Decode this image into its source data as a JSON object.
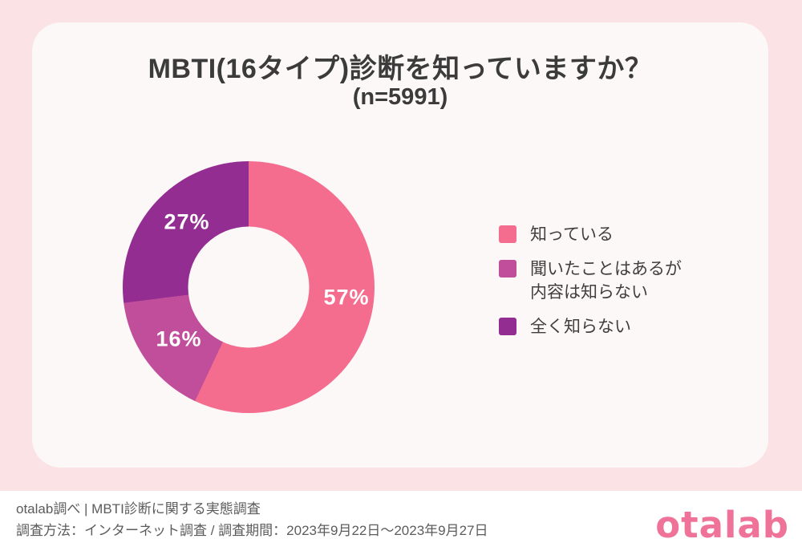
{
  "header": {
    "title": "MBTI(16タイプ)診断を知っていますか？",
    "subtitle": "(n=5991)"
  },
  "chart_data": {
    "type": "pie",
    "subtype": "donut",
    "title": "MBTI(16タイプ)診断を知っていますか？",
    "sample_label": "(n=5991)",
    "sample_size": 5991,
    "unit": "%",
    "categories": [
      "知っている",
      "聞いたことはあるが内容は知らない",
      "全く知らない"
    ],
    "values": [
      57,
      16,
      27
    ],
    "labels": [
      "57%",
      "16%",
      "27%"
    ],
    "colors": [
      "#F46D8F",
      "#C14E9B",
      "#932D91"
    ],
    "start_angle_deg": 0,
    "direction": "clockwise",
    "inner_radius_ratio": 0.48,
    "data_label_color": "#FFFFFF",
    "legend_position": "right"
  },
  "legend": {
    "items": [
      {
        "lines": [
          "知っている"
        ],
        "color": "#F46D8F"
      },
      {
        "lines": [
          "聞いたことはあるが",
          "内容は知らない"
        ],
        "color": "#C14E9B"
      },
      {
        "lines": [
          "全く知らない"
        ],
        "color": "#932D91"
      }
    ]
  },
  "footer": {
    "source_line": "otalab調べ | MBTI診断に関する実態調査",
    "method_line": "調査方法：インターネット調査 / 調査期間：2023年9月22日〜2023年9月27日",
    "logo_text": "otalab"
  },
  "colors": {
    "page_background": "#FBE3E5",
    "card_background": "#FDF8F8",
    "footer_background": "#FFFFFF",
    "title_text": "#3B3B3B",
    "legend_text": "#3F3F3F",
    "footer_text": "#5C5C5C",
    "logo_pink": "#EF7299"
  }
}
